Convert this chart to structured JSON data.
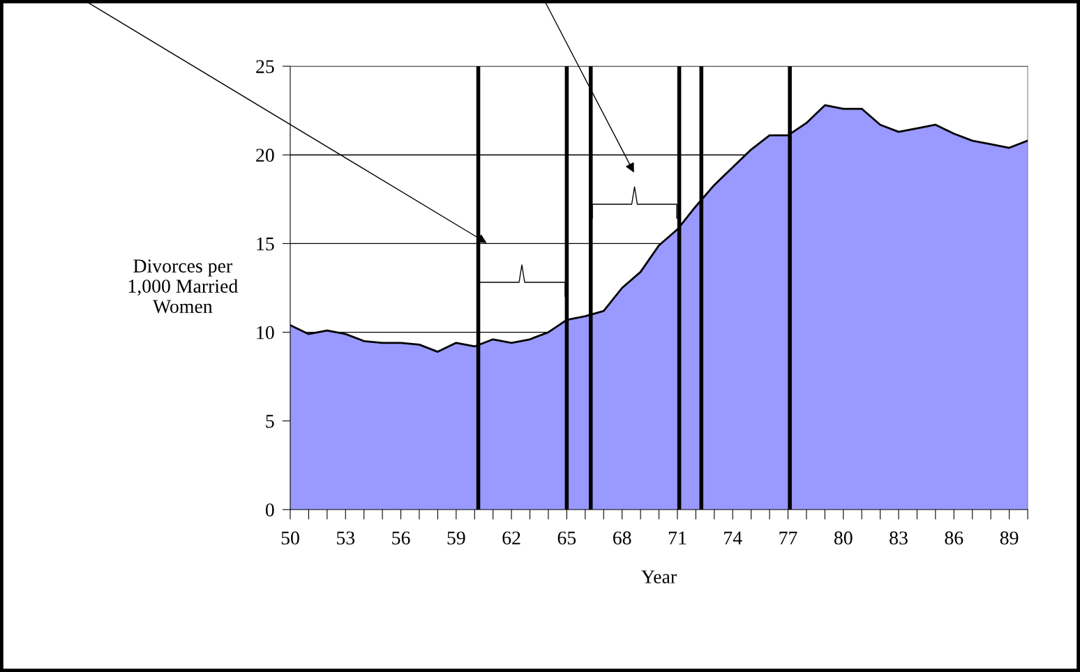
{
  "chart_data": {
    "type": "area",
    "xlabel": "Year",
    "ylabel": "Divorces per\n1,000 Married\nWomen",
    "x": [
      50,
      51,
      52,
      53,
      54,
      55,
      56,
      57,
      58,
      59,
      60,
      61,
      62,
      63,
      64,
      65,
      66,
      67,
      68,
      69,
      70,
      71,
      72,
      73,
      74,
      75,
      76,
      77,
      78,
      79,
      80,
      81,
      82,
      83,
      84,
      85,
      86,
      87,
      88,
      89,
      90
    ],
    "series": [
      {
        "color": "#9999ff",
        "values": [
          10.4,
          9.9,
          10.1,
          9.9,
          9.5,
          9.4,
          9.4,
          9.3,
          8.9,
          9.4,
          9.2,
          9.6,
          9.4,
          9.6,
          10.0,
          10.7,
          10.9,
          11.2,
          12.5,
          13.4,
          14.9,
          15.8,
          17.1,
          18.3,
          19.3,
          20.3,
          21.1,
          21.1,
          21.8,
          22.8,
          22.6,
          22.6,
          21.7,
          21.3,
          21.5,
          21.7,
          21.2,
          20.8,
          20.6,
          20.4,
          20.8
        ]
      }
    ],
    "xlim": [
      50,
      90
    ],
    "xticks": [
      50,
      {
        "value": 51,
        "label": null
      },
      {
        "value": 52,
        "label": null
      },
      53,
      {
        "value": 54,
        "label": null
      },
      {
        "value": 55,
        "label": null
      },
      56,
      {
        "value": 57,
        "label": null
      },
      {
        "value": 58,
        "label": null
      },
      59,
      {
        "value": 60,
        "label": null
      },
      {
        "value": 61,
        "label": null
      },
      62,
      {
        "value": 63,
        "label": null
      },
      {
        "value": 64,
        "label": null
      },
      65,
      {
        "value": 66,
        "label": null
      },
      {
        "value": 67,
        "label": null
      },
      68,
      {
        "value": 69,
        "label": null
      },
      {
        "value": 70,
        "label": null
      },
      71,
      {
        "value": 72,
        "label": null
      },
      {
        "value": 73,
        "label": null
      },
      74,
      {
        "value": 75,
        "label": null
      },
      {
        "value": 76,
        "label": null
      },
      77,
      {
        "value": 78,
        "label": null
      },
      {
        "value": 79,
        "label": null
      },
      80,
      {
        "value": 81,
        "label": null
      },
      {
        "value": 82,
        "label": null
      },
      83,
      {
        "value": 84,
        "label": null
      },
      {
        "value": 85,
        "label": null
      },
      86,
      {
        "value": 87,
        "label": null
      },
      {
        "value": 88,
        "label": null
      },
      89,
      {
        "value": 90,
        "label": null
      }
    ],
    "ylim": [
      0,
      25
    ],
    "yticks": [
      0,
      5,
      10,
      15,
      20,
      25
    ],
    "grid": "y",
    "ref_lines": [
      {
        "axis": "x",
        "value": 60.2,
        "color": "#000000"
      },
      {
        "axis": "x",
        "value": 65.0,
        "color": "#000000"
      },
      {
        "axis": "x",
        "value": 66.3,
        "color": "#000000"
      },
      {
        "axis": "x",
        "value": 71.1,
        "color": "#000000"
      },
      {
        "axis": "x",
        "value": 72.3,
        "color": "#000000"
      },
      {
        "axis": "x",
        "value": 77.1,
        "color": "#000000"
      }
    ]
  }
}
